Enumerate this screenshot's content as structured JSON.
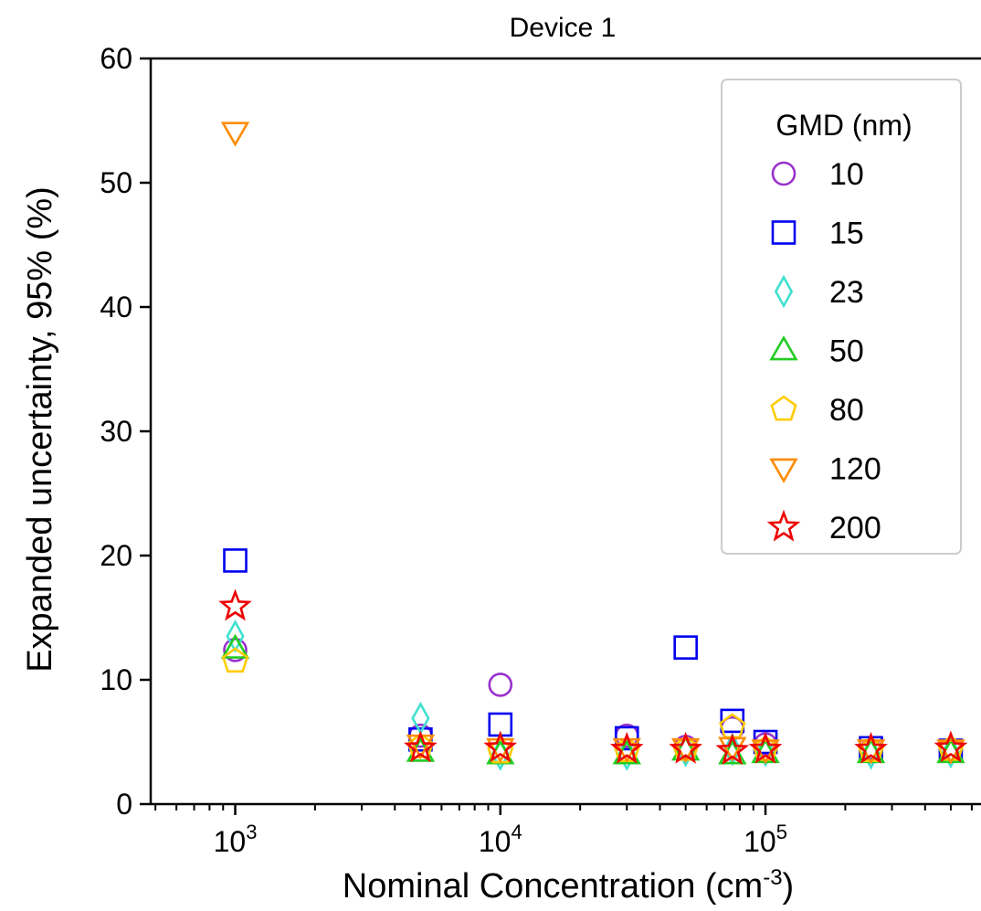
{
  "chart_data": {
    "type": "scatter",
    "title": "Device 1",
    "xlabel": "Nominal Concentration (cm",
    "xlabel_sup": "-3",
    "xlabel_end": ")",
    "ylabel": "Expanded uncertainty, 95% (%)",
    "xscale": "log",
    "xlim": [
      480,
      650000
    ],
    "ylim": [
      0,
      60
    ],
    "yticks": [
      0,
      10,
      20,
      30,
      40,
      50,
      60
    ],
    "xticks": [
      {
        "value": 1000,
        "base": "10",
        "exp": "3"
      },
      {
        "value": 10000,
        "base": "10",
        "exp": "4"
      },
      {
        "value": 100000,
        "base": "10",
        "exp": "5"
      }
    ],
    "grid": false,
    "legend": {
      "title": "GMD (nm)",
      "position": "top-right"
    },
    "series": [
      {
        "name": "10",
        "marker": "circle",
        "color": "#9932CC",
        "points": [
          [
            1000,
            12.4
          ],
          [
            5000,
            5.5
          ],
          [
            10000,
            9.6
          ],
          [
            30000,
            5.5
          ],
          [
            50000,
            4.6
          ],
          [
            75000,
            6.1
          ],
          [
            100000,
            4.8
          ],
          [
            250000,
            4.3
          ],
          [
            500000,
            4.3
          ]
        ]
      },
      {
        "name": "15",
        "marker": "square",
        "color": "#0000EE",
        "points": [
          [
            1000,
            19.6
          ],
          [
            5000,
            5.2
          ],
          [
            10000,
            6.4
          ],
          [
            30000,
            5.3
          ],
          [
            50000,
            12.6
          ],
          [
            75000,
            6.7
          ],
          [
            100000,
            5.0
          ],
          [
            250000,
            4.5
          ],
          [
            500000,
            4.3
          ]
        ]
      },
      {
        "name": "23",
        "marker": "diamond",
        "color": "#40E0D0",
        "points": [
          [
            1000,
            13.5
          ],
          [
            5000,
            6.9
          ],
          [
            10000,
            4.0
          ],
          [
            30000,
            4.0
          ],
          [
            50000,
            4.3
          ],
          [
            75000,
            4.4
          ],
          [
            100000,
            4.3
          ],
          [
            250000,
            4.1
          ],
          [
            500000,
            4.2
          ]
        ]
      },
      {
        "name": "50",
        "marker": "triangle-up",
        "color": "#22CC22",
        "points": [
          [
            1000,
            12.5
          ],
          [
            5000,
            4.2
          ],
          [
            10000,
            4.0
          ],
          [
            30000,
            4.0
          ],
          [
            50000,
            4.3
          ],
          [
            75000,
            4.0
          ],
          [
            100000,
            4.1
          ],
          [
            250000,
            4.1
          ],
          [
            500000,
            4.1
          ]
        ]
      },
      {
        "name": "80",
        "marker": "pentagon",
        "color": "#FFCC00",
        "points": [
          [
            1000,
            11.5
          ],
          [
            5000,
            4.6
          ],
          [
            10000,
            4.2
          ],
          [
            30000,
            4.3
          ],
          [
            50000,
            4.4
          ],
          [
            75000,
            6.2
          ],
          [
            100000,
            4.4
          ],
          [
            250000,
            4.3
          ],
          [
            500000,
            4.4
          ]
        ]
      },
      {
        "name": "120",
        "marker": "triangle-down",
        "color": "#FF8C00",
        "points": [
          [
            1000,
            54.1
          ],
          [
            5000,
            4.8
          ],
          [
            10000,
            4.5
          ],
          [
            30000,
            4.5
          ],
          [
            50000,
            4.5
          ],
          [
            75000,
            4.6
          ],
          [
            100000,
            4.4
          ],
          [
            250000,
            4.4
          ],
          [
            500000,
            4.4
          ]
        ]
      },
      {
        "name": "200",
        "marker": "star",
        "color": "#EE0000",
        "points": [
          [
            1000,
            15.9
          ],
          [
            5000,
            4.5
          ],
          [
            10000,
            4.5
          ],
          [
            30000,
            4.4
          ],
          [
            50000,
            4.4
          ],
          [
            75000,
            4.3
          ],
          [
            100000,
            4.4
          ],
          [
            250000,
            4.4
          ],
          [
            500000,
            4.5
          ]
        ]
      }
    ]
  }
}
